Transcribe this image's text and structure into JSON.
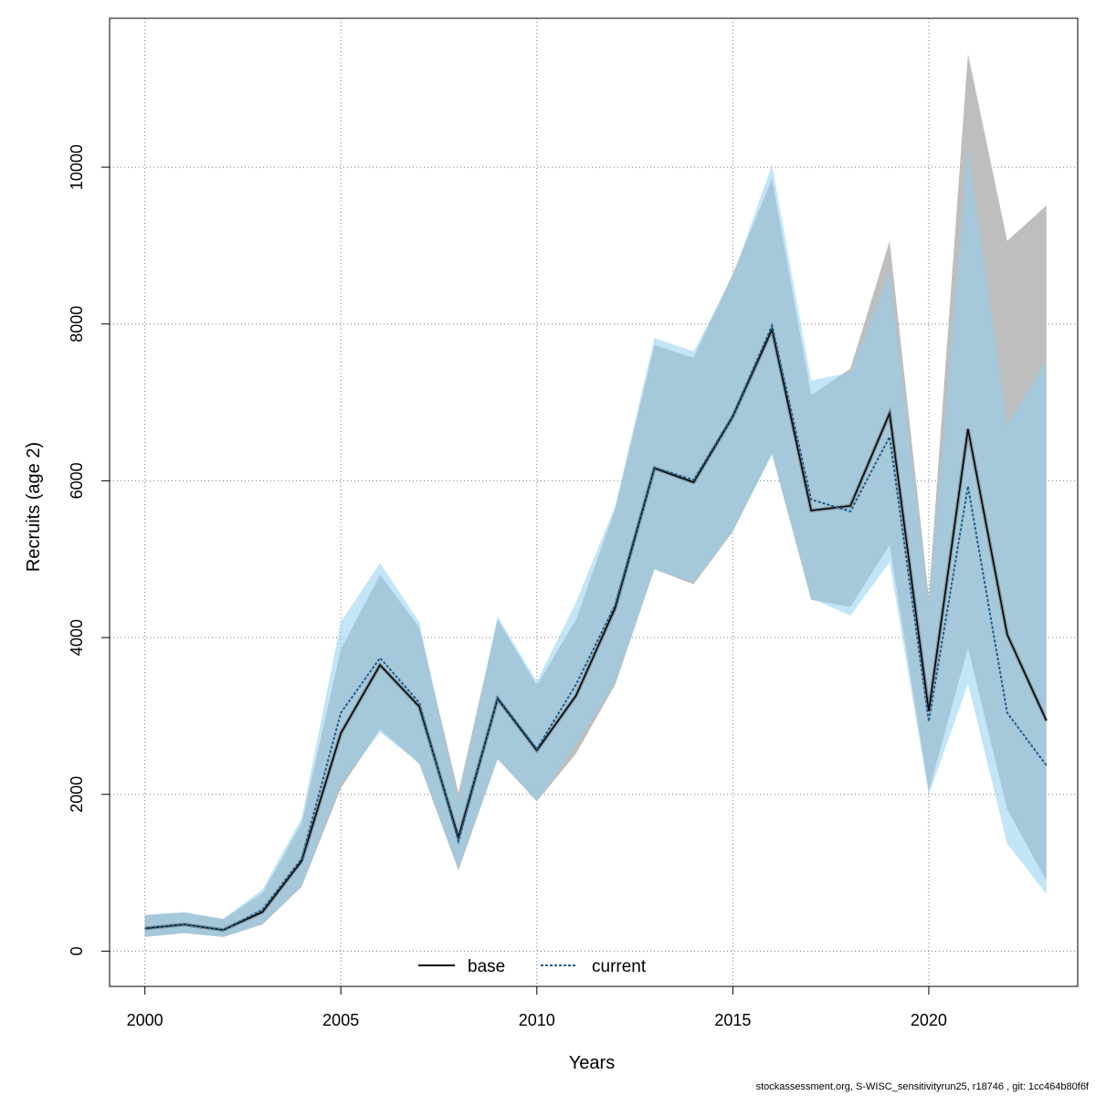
{
  "chart_data": {
    "type": "line",
    "xlabel": "Years",
    "ylabel": "Recruits (age 2)",
    "xlim": [
      1999.1,
      2023.8
    ],
    "ylim": [
      -450,
      11900
    ],
    "xticks": [
      2000,
      2005,
      2010,
      2015,
      2020
    ],
    "yticks": [
      0,
      2000,
      4000,
      6000,
      8000,
      10000
    ],
    "grid": true,
    "legend_position": "bottom-center",
    "x": [
      2000,
      2001,
      2002,
      2003,
      2004,
      2005,
      2006,
      2007,
      2008,
      2009,
      2010,
      2011,
      2012,
      2013,
      2014,
      2015,
      2016,
      2017,
      2018,
      2019,
      2020,
      2021,
      2022,
      2023
    ],
    "series": [
      {
        "name": "base",
        "line_color": "#000000",
        "line_style": "solid",
        "band_color": "#bebebe",
        "values": [
          290,
          340,
          270,
          500,
          1150,
          2780,
          3650,
          3120,
          1450,
          3220,
          2560,
          3260,
          4380,
          6160,
          5980,
          6820,
          7930,
          5620,
          5680,
          6860,
          3060,
          6660,
          4040,
          2940
        ],
        "lower": [
          180,
          230,
          180,
          340,
          820,
          2080,
          2830,
          2390,
          1030,
          2450,
          1910,
          2520,
          3400,
          4870,
          4680,
          5350,
          6350,
          4480,
          4390,
          5180,
          2040,
          3870,
          1810,
          900
        ],
        "upper": [
          460,
          490,
          410,
          740,
          1630,
          3850,
          4800,
          4130,
          2020,
          4230,
          3390,
          4230,
          5640,
          7730,
          7570,
          8640,
          9850,
          7090,
          7430,
          9060,
          4520,
          11450,
          9060,
          9510
        ]
      },
      {
        "name": "current",
        "line_color": "#1f5c8a",
        "line_style": "dotted",
        "band_color": "#8fd0f0",
        "values": [
          290,
          340,
          270,
          530,
          1180,
          3040,
          3740,
          3170,
          1400,
          3230,
          2580,
          3400,
          4420,
          6170,
          6010,
          6830,
          7980,
          5760,
          5610,
          6560,
          2930,
          5930,
          3040,
          2370
        ],
        "lower": [
          180,
          230,
          180,
          350,
          840,
          2140,
          2790,
          2400,
          1050,
          2460,
          1920,
          2630,
          3440,
          4870,
          4700,
          5360,
          6330,
          4500,
          4280,
          4960,
          1990,
          3410,
          1370,
          730
        ],
        "upper": [
          460,
          500,
          410,
          790,
          1700,
          4200,
          4950,
          4200,
          1920,
          4270,
          3440,
          4450,
          5680,
          7820,
          7650,
          8610,
          10030,
          7280,
          7380,
          8650,
          4420,
          10230,
          6720,
          7540
        ]
      }
    ]
  },
  "footer_text": "stockassessment.org, S-WISC_sensitivityrun25, r18746 , git: 1cc464b80f6f"
}
